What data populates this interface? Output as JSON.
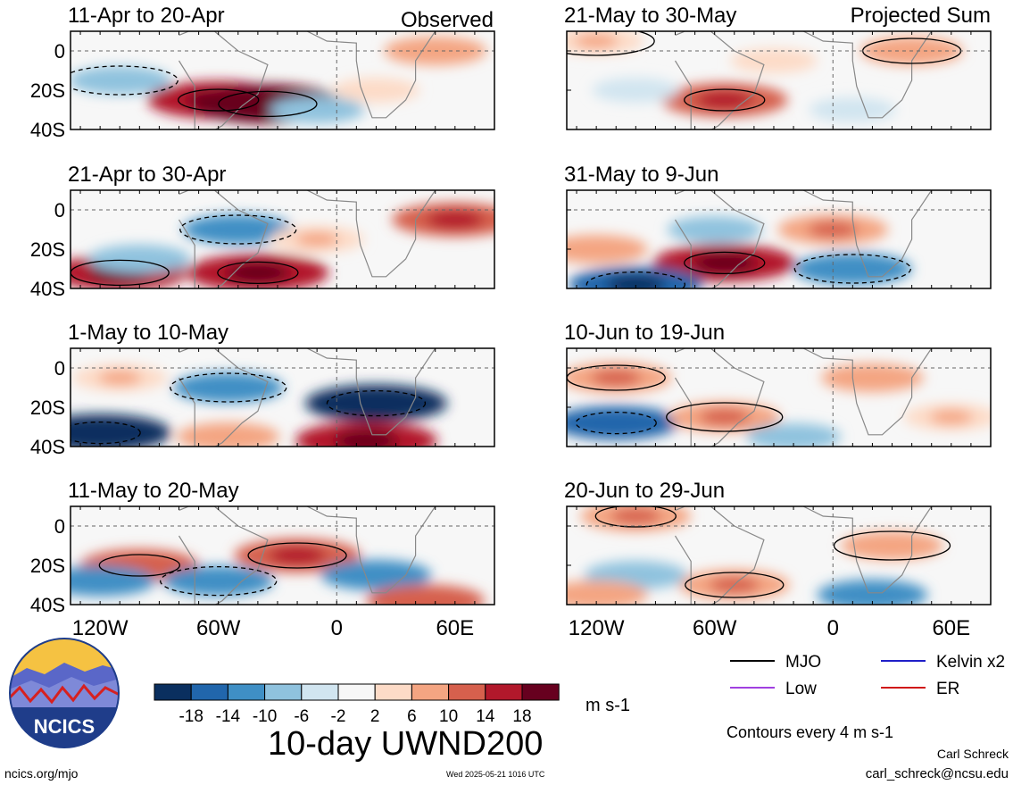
{
  "figure": {
    "title": "10-day UWND200",
    "units": "m s-1",
    "left_column_label": "Observed",
    "right_column_label": "Projected Sum",
    "contour_note": "Contours every 4 m s-1",
    "author": "Carl Schreck",
    "email": "carl_schreck@ncsu.edu",
    "site": "ncics.org/mjo",
    "timestamp": "Wed 2025-05-21 1016 UTC",
    "logo_text": "NCICS"
  },
  "axes": {
    "lat_ticks": [
      "0",
      "20S",
      "40S"
    ],
    "lat_values": [
      0,
      -20,
      -40
    ],
    "lon_ticks": [
      "120W",
      "60W",
      "0",
      "60E"
    ],
    "lon_values": [
      -120,
      -60,
      0,
      60
    ],
    "lon_range": [
      -135,
      80
    ],
    "lat_range": [
      -40,
      10
    ]
  },
  "legend": {
    "items": [
      {
        "label": "MJO",
        "color": "#000000"
      },
      {
        "label": "Kelvin x2",
        "color": "#1f1fc8"
      },
      {
        "label": "Low",
        "color": "#a040e0"
      },
      {
        "label": "ER",
        "color": "#d01818"
      }
    ]
  },
  "colorbar": {
    "tick_labels": [
      "-18",
      "-14",
      "-10",
      "-6",
      "-2",
      "2",
      "6",
      "10",
      "14",
      "18"
    ],
    "colors": [
      "#0a2f5f",
      "#2166ac",
      "#3f8fc5",
      "#8fc2de",
      "#d1e5f0",
      "#f7f7f7",
      "#fddbc7",
      "#f4a582",
      "#d6604d",
      "#b2182b",
      "#67001f"
    ]
  },
  "chart_data": [
    {
      "type": "heatmap",
      "title": "11-Apr to 20-Apr",
      "column": "Observed",
      "features": [
        {
          "lon": -60,
          "lat": -25,
          "value": 18
        },
        {
          "lon": -35,
          "lat": -27,
          "value": 20
        },
        {
          "lon": -110,
          "lat": -15,
          "value": -8
        },
        {
          "lon": -10,
          "lat": -30,
          "value": -6
        },
        {
          "lon": 50,
          "lat": 0,
          "value": 8
        },
        {
          "lon": 20,
          "lat": -20,
          "value": 4
        }
      ]
    },
    {
      "type": "heatmap",
      "title": "21-Apr to 30-Apr",
      "column": "Observed",
      "features": [
        {
          "lon": -40,
          "lat": -32,
          "value": 18
        },
        {
          "lon": -110,
          "lat": -32,
          "value": 16
        },
        {
          "lon": -50,
          "lat": -10,
          "value": -10
        },
        {
          "lon": -100,
          "lat": -25,
          "value": -8
        },
        {
          "lon": 60,
          "lat": -5,
          "value": 14
        },
        {
          "lon": -10,
          "lat": -15,
          "value": 6
        }
      ]
    },
    {
      "type": "heatmap",
      "title": "1-May to 10-May",
      "column": "Observed",
      "features": [
        {
          "lon": -120,
          "lat": -33,
          "value": -18
        },
        {
          "lon": 20,
          "lat": -18,
          "value": -18
        },
        {
          "lon": -55,
          "lat": -10,
          "value": -10
        },
        {
          "lon": 15,
          "lat": -37,
          "value": 18
        },
        {
          "lon": -55,
          "lat": -35,
          "value": 8
        },
        {
          "lon": -110,
          "lat": -5,
          "value": 6
        }
      ]
    },
    {
      "type": "heatmap",
      "title": "11-May to 20-May",
      "column": "Observed",
      "features": [
        {
          "lon": -100,
          "lat": -20,
          "value": 12
        },
        {
          "lon": -20,
          "lat": -15,
          "value": 14
        },
        {
          "lon": -60,
          "lat": -28,
          "value": -10
        },
        {
          "lon": -120,
          "lat": -28,
          "value": -10
        },
        {
          "lon": 20,
          "lat": -25,
          "value": -10
        },
        {
          "lon": 45,
          "lat": -38,
          "value": 12
        }
      ]
    },
    {
      "type": "heatmap",
      "title": "21-May to 30-May",
      "column": "Projected Sum",
      "features": [
        {
          "lon": -55,
          "lat": -25,
          "value": 14
        },
        {
          "lon": 40,
          "lat": 0,
          "value": 8
        },
        {
          "lon": -120,
          "lat": 5,
          "value": 6
        },
        {
          "lon": -30,
          "lat": -5,
          "value": 4
        },
        {
          "lon": 10,
          "lat": -30,
          "value": -4
        },
        {
          "lon": -100,
          "lat": -20,
          "value": -4
        }
      ]
    },
    {
      "type": "heatmap",
      "title": "31-May to 9-Jun",
      "column": "Projected Sum",
      "features": [
        {
          "lon": -55,
          "lat": -27,
          "value": 18
        },
        {
          "lon": -100,
          "lat": -38,
          "value": -16
        },
        {
          "lon": 10,
          "lat": -30,
          "value": -12
        },
        {
          "lon": 0,
          "lat": -10,
          "value": 10
        },
        {
          "lon": -120,
          "lat": -20,
          "value": 8
        },
        {
          "lon": -60,
          "lat": -10,
          "value": -6
        }
      ]
    },
    {
      "type": "heatmap",
      "title": "10-Jun to 19-Jun",
      "column": "Projected Sum",
      "features": [
        {
          "lon": -110,
          "lat": -28,
          "value": -14
        },
        {
          "lon": -110,
          "lat": -5,
          "value": 10
        },
        {
          "lon": -55,
          "lat": -25,
          "value": 10
        },
        {
          "lon": 20,
          "lat": -5,
          "value": 8
        },
        {
          "lon": -20,
          "lat": -35,
          "value": -6
        },
        {
          "lon": 60,
          "lat": -25,
          "value": 6
        }
      ]
    },
    {
      "type": "heatmap",
      "title": "20-Jun to 29-Jun",
      "column": "Projected Sum",
      "features": [
        {
          "lon": -100,
          "lat": 5,
          "value": 10
        },
        {
          "lon": -50,
          "lat": -30,
          "value": 10
        },
        {
          "lon": 30,
          "lat": -10,
          "value": 8
        },
        {
          "lon": -100,
          "lat": -25,
          "value": -8
        },
        {
          "lon": 20,
          "lat": -35,
          "value": -10
        },
        {
          "lon": -120,
          "lat": -35,
          "value": 8
        }
      ]
    }
  ]
}
